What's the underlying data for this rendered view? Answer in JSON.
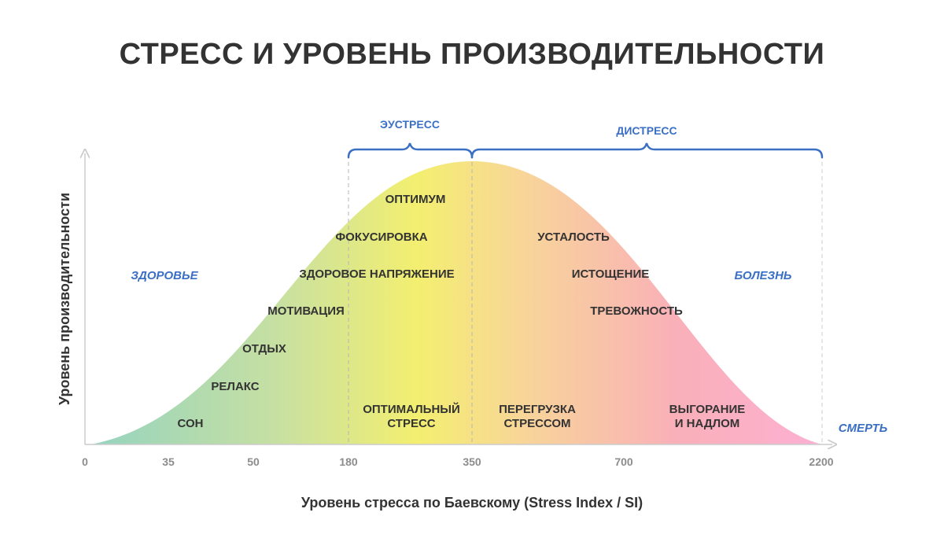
{
  "title": "СТРЕСС И УРОВЕНЬ ПРОИЗВОДИТЕЛЬНОСТИ",
  "chart_data": {
    "type": "area",
    "title": "СТРЕСС И УРОВЕНЬ ПРОИЗВОДИТЕЛЬНОСТИ",
    "xlabel": "Уровень стресса по Баевскому (Stress Index / SI)",
    "ylabel": "Уровень производительности",
    "x_ticks": [
      "0",
      "35",
      "50",
      "180",
      "350",
      "700",
      "2200"
    ],
    "zones": [
      {
        "label": "ЭУСТРЕСС",
        "from": "180",
        "to": "350"
      },
      {
        "label": "ДИСТРЕСС",
        "from": "350",
        "to": "2200"
      }
    ],
    "side_labels": {
      "left": "ЗДОРОВЬЕ",
      "right": "БОЛЕЗНЬ",
      "end": "СМЕРТЬ"
    },
    "curve_labels": {
      "left": [
        "СОН",
        "РЕЛАКС",
        "ОТДЫХ",
        "МОТИВАЦИЯ",
        "ЗДОРОВОЕ НАПРЯЖЕНИЕ",
        "ФОКУСИРОВКА",
        "ОПТИМУМ"
      ],
      "right": [
        "УСТАЛОСТЬ",
        "ИСТОЩЕНИЕ",
        "ТРЕВОЖНОСТЬ"
      ]
    },
    "bottom_labels": [
      [
        "ОПТИМАЛЬНЫЙ",
        "СТРЕСС"
      ],
      [
        "ПЕРЕГРУЗКА",
        "СТРЕССОМ"
      ],
      [
        "ВЫГОРАНИЕ",
        "И НАДЛОМ"
      ]
    ],
    "gradient_colors": [
      "#94d3c0",
      "#c7e0a2",
      "#f3ef70",
      "#f8d49a",
      "#f9b0b8",
      "#fdb0d3"
    ],
    "accent_color": "#3a6fc4",
    "grid": false
  }
}
